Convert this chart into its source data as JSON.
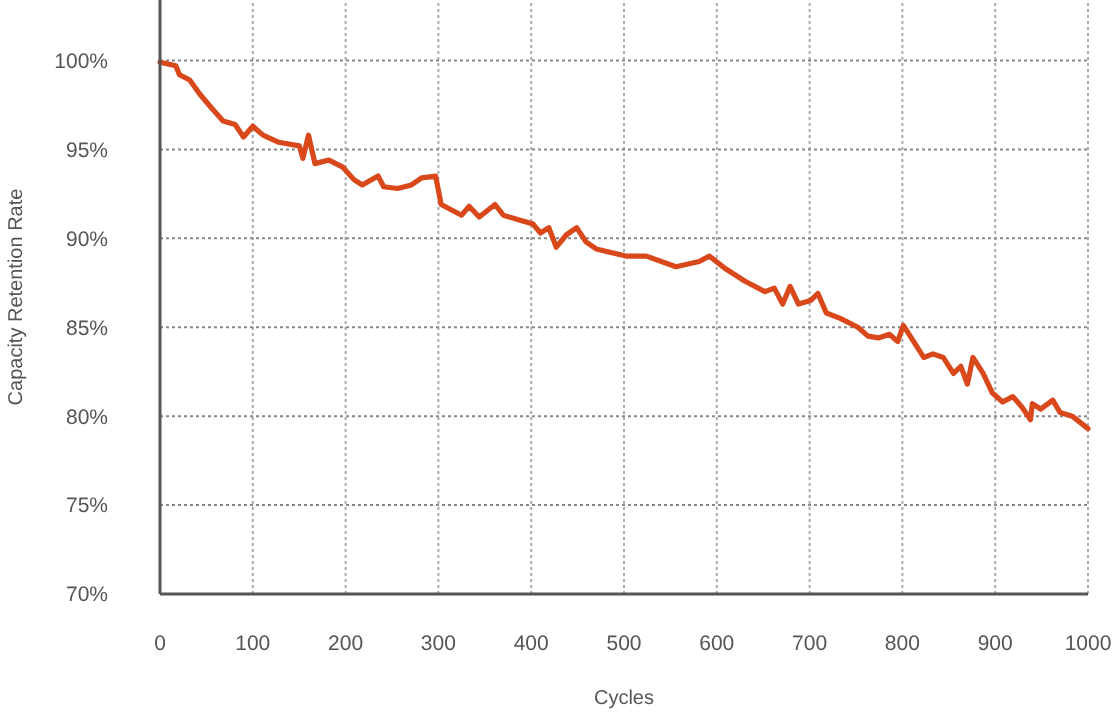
{
  "chart_data": {
    "type": "line",
    "xlabel": "Cycles",
    "ylabel": "Capacity Retention Rate",
    "xlim": [
      0,
      1000
    ],
    "xticks": [
      0,
      100,
      200,
      300,
      400,
      500,
      600,
      700,
      800,
      900,
      1000
    ],
    "ylim": [
      70,
      103.4
    ],
    "yticks": [
      {
        "value": 70,
        "label": "70%"
      },
      {
        "value": 75,
        "label": "75%"
      },
      {
        "value": 80,
        "label": "80%"
      },
      {
        "value": 85,
        "label": "85%"
      },
      {
        "value": 90,
        "label": "90%"
      },
      {
        "value": 95,
        "label": "95%"
      },
      {
        "value": 100,
        "label": "100%"
      }
    ],
    "grid": true,
    "marker": "none",
    "line_style": "solid",
    "x": [
      0,
      17,
      21,
      32,
      43,
      56,
      68,
      81,
      90,
      100,
      111,
      128,
      150,
      154,
      160,
      167,
      182,
      197,
      209,
      218,
      235,
      241,
      256,
      271,
      282,
      297,
      303,
      325,
      333,
      344,
      361,
      370,
      389,
      402,
      410,
      419,
      427,
      438,
      449,
      459,
      470,
      502,
      524,
      556,
      581,
      592,
      609,
      630,
      652,
      662,
      671,
      679,
      688,
      701,
      709,
      718,
      733,
      752,
      763,
      774,
      786,
      795,
      801,
      812,
      823,
      833,
      844,
      855,
      863,
      870,
      876,
      887,
      897,
      908,
      919,
      929,
      938,
      940,
      949,
      962,
      970,
      983,
      1000
    ],
    "series": [
      {
        "color": "#d9481b",
        "values": [
          99.9,
          99.7,
          99.2,
          98.9,
          98.1,
          97.3,
          96.6,
          96.4,
          95.7,
          96.3,
          95.8,
          95.4,
          95.2,
          94.5,
          95.8,
          94.2,
          94.4,
          94.0,
          93.3,
          93.0,
          93.5,
          92.9,
          92.8,
          93.0,
          93.4,
          93.5,
          91.9,
          91.3,
          91.8,
          91.2,
          91.9,
          91.3,
          91.0,
          90.8,
          90.3,
          90.6,
          89.5,
          90.2,
          90.6,
          89.8,
          89.4,
          89.0,
          89.0,
          88.4,
          88.7,
          89.0,
          88.3,
          87.6,
          87.0,
          87.2,
          86.3,
          87.3,
          86.3,
          86.5,
          86.9,
          85.8,
          85.5,
          85.0,
          84.5,
          84.4,
          84.6,
          84.2,
          85.1,
          84.2,
          83.3,
          83.5,
          83.3,
          82.4,
          82.8,
          81.8,
          83.3,
          82.4,
          81.3,
          80.8,
          81.1,
          80.5,
          79.8,
          80.7,
          80.4,
          80.9,
          80.2,
          80.0,
          79.3
        ]
      }
    ]
  }
}
